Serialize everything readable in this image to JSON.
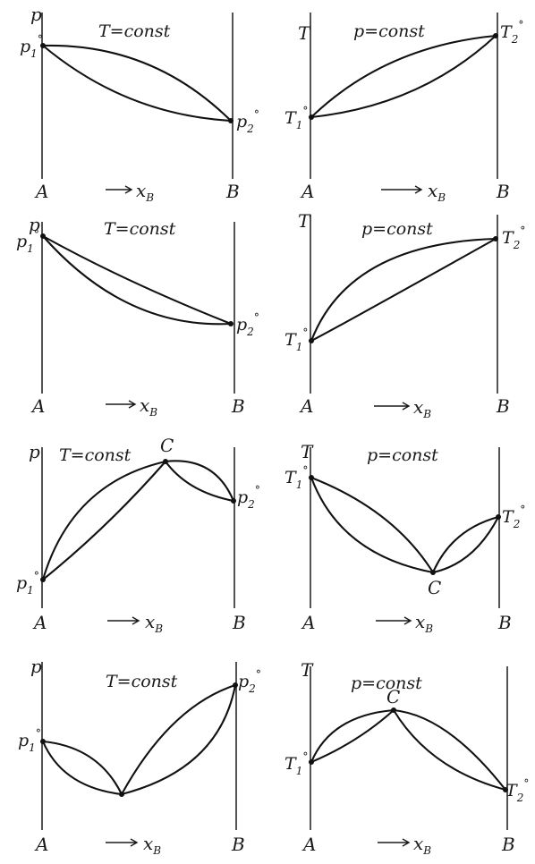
{
  "panels": [
    {
      "title": "T=const",
      "y_axis": "p",
      "left_end": {
        "sym": "p",
        "sub": "1",
        "deg": "°"
      },
      "right_end": {
        "sym": "p",
        "sub": "2",
        "deg": "°"
      },
      "extremum": "",
      "x_left": "A",
      "x_right": "B",
      "x_axis": {
        "sym": "x",
        "sub": "B"
      }
    },
    {
      "title": "p=const",
      "y_axis": "T",
      "left_end": {
        "sym": "T",
        "sub": "1",
        "deg": "°"
      },
      "right_end": {
        "sym": "T",
        "sub": "2",
        "deg": "°"
      },
      "extremum": "",
      "x_left": "A",
      "x_right": "B",
      "x_axis": {
        "sym": "x",
        "sub": "B"
      }
    },
    {
      "title": "T=const",
      "y_axis": "p",
      "left_end": {
        "sym": "p",
        "sub": "1",
        "deg": "°"
      },
      "right_end": {
        "sym": "p",
        "sub": "2",
        "deg": "°"
      },
      "extremum": "",
      "x_left": "A",
      "x_right": "B",
      "x_axis": {
        "sym": "x",
        "sub": "B"
      }
    },
    {
      "title": "p=const",
      "y_axis": "T",
      "left_end": {
        "sym": "T",
        "sub": "1",
        "deg": "°"
      },
      "right_end": {
        "sym": "T",
        "sub": "2",
        "deg": "°"
      },
      "extremum": "",
      "x_left": "A",
      "x_right": "B",
      "x_axis": {
        "sym": "x",
        "sub": "B"
      }
    },
    {
      "title": "T=const",
      "y_axis": "p",
      "left_end": {
        "sym": "p",
        "sub": "1",
        "deg": "°"
      },
      "right_end": {
        "sym": "p",
        "sub": "2",
        "deg": "°"
      },
      "extremum": "C",
      "x_left": "A",
      "x_right": "B",
      "x_axis": {
        "sym": "x",
        "sub": "B"
      }
    },
    {
      "title": "p=const",
      "y_axis": "T",
      "left_end": {
        "sym": "T",
        "sub": "1",
        "deg": "°"
      },
      "right_end": {
        "sym": "T",
        "sub": "2",
        "deg": "°"
      },
      "extremum": "C",
      "x_left": "A",
      "x_right": "B",
      "x_axis": {
        "sym": "x",
        "sub": "B"
      }
    },
    {
      "title": "T=const",
      "y_axis": "p",
      "left_end": {
        "sym": "p",
        "sub": "1",
        "deg": "°"
      },
      "right_end": {
        "sym": "p",
        "sub": "2",
        "deg": "°"
      },
      "extremum": "",
      "x_left": "A",
      "x_right": "B",
      "x_axis": {
        "sym": "x",
        "sub": "B"
      }
    },
    {
      "title": "p=const",
      "y_axis": "T",
      "left_end": {
        "sym": "T",
        "sub": "1",
        "deg": "°"
      },
      "right_end": {
        "sym": "T",
        "sub": "2",
        "deg": "°"
      },
      "extremum": "C",
      "x_left": "A",
      "x_right": "B",
      "x_axis": {
        "sym": "x",
        "sub": "B"
      }
    }
  ]
}
